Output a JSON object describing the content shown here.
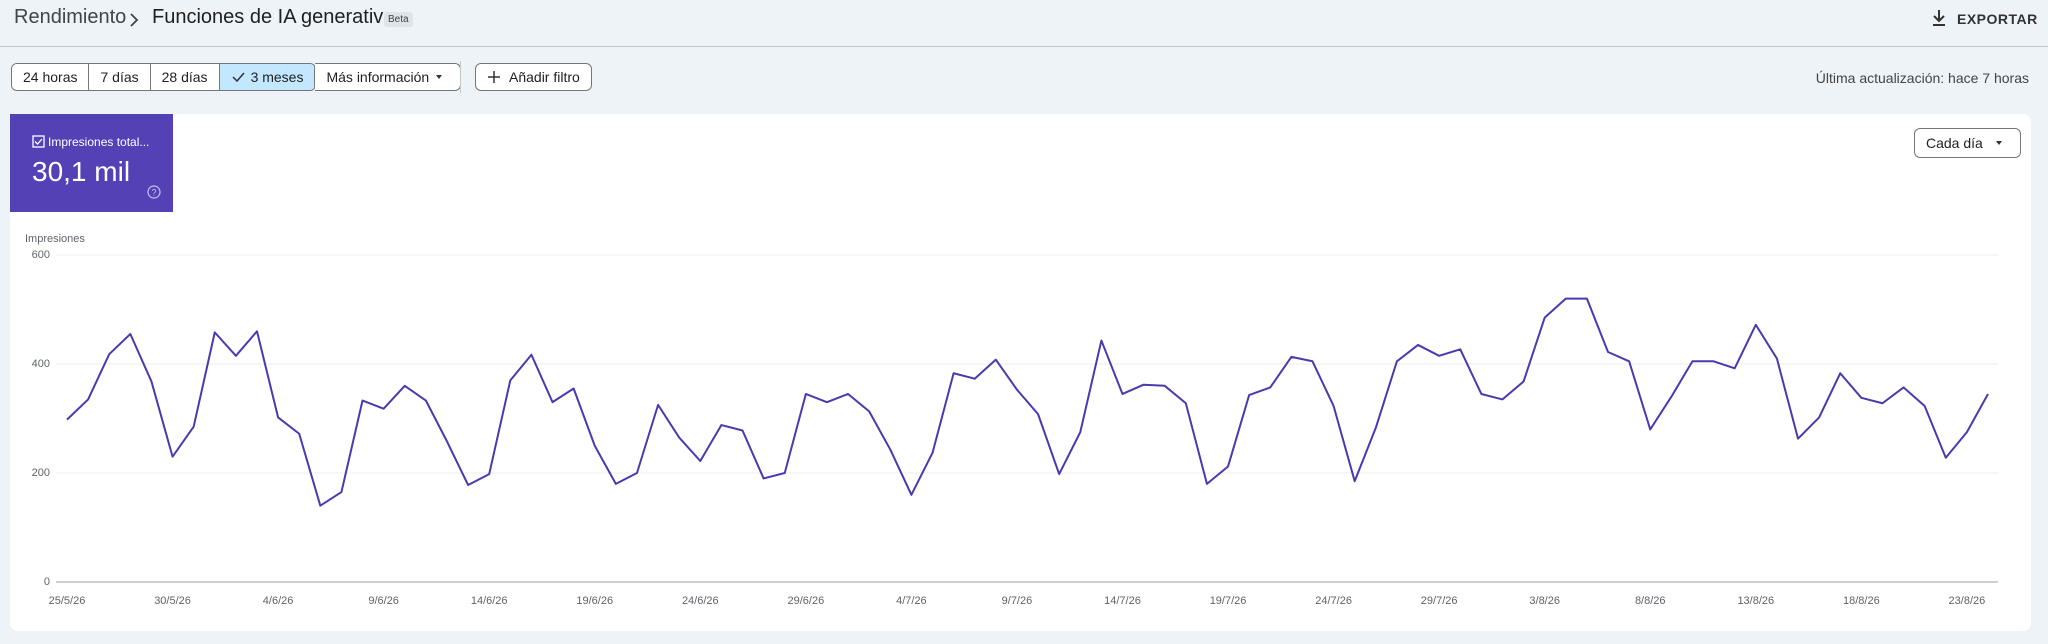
{
  "header": {
    "breadcrumb": "Rendimiento",
    "title": "Funciones de IA generativa",
    "badge": "Beta",
    "export": "EXPORTAR"
  },
  "toolbar": {
    "ranges": [
      "24 horas",
      "7 días",
      "28 días",
      "3 meses"
    ],
    "selected_range": "3 meses",
    "more": "Más información",
    "filter": "Añadir filtro",
    "last_update": "Última actualización: hace 7 horas"
  },
  "metric_card": {
    "label": "Impresiones total...",
    "value": "30,1 mil",
    "color": "#5441b6"
  },
  "granularity": "Cada día",
  "chart_data": {
    "type": "line",
    "y_label": "Impresiones",
    "categories": [
      "25/5/26",
      null,
      null,
      null,
      null,
      "30/5/26",
      null,
      null,
      null,
      null,
      "4/6/26",
      null,
      null,
      null,
      null,
      "9/6/26",
      null,
      null,
      null,
      null,
      "14/6/26",
      null,
      null,
      null,
      null,
      "19/6/26",
      null,
      null,
      null,
      null,
      "24/6/26",
      null,
      null,
      null,
      null,
      "29/6/26",
      null,
      null,
      null,
      null,
      "4/7/26",
      null,
      null,
      null,
      null,
      "9/7/26",
      null,
      null,
      null,
      null,
      "14/7/26",
      null,
      null,
      null,
      null,
      "19/7/26",
      null,
      null,
      null,
      null,
      "24/7/26",
      null,
      null,
      null,
      null,
      "29/7/26",
      null,
      null,
      null,
      null,
      "3/8/26",
      null,
      null,
      null,
      null,
      "8/8/26",
      null,
      null,
      null,
      null,
      "13/8/26",
      null,
      null,
      null,
      null,
      "18/8/26",
      null,
      null,
      null,
      null,
      "23/8/26",
      null
    ],
    "series": [
      {
        "name": "Impresiones",
        "color": "#4a3aad",
        "values": [
          298,
          335,
          418,
          455,
          368,
          230,
          285,
          458,
          415,
          460,
          302,
          272,
          140,
          165,
          333,
          318,
          360,
          333,
          258,
          178,
          198,
          370,
          417,
          330,
          355,
          250,
          180,
          200,
          325,
          265,
          222,
          288,
          278,
          190,
          200,
          345,
          330,
          345,
          313,
          243,
          160,
          237,
          383,
          373,
          408,
          353,
          308,
          198,
          275,
          443,
          345,
          362,
          360,
          328,
          180,
          212,
          343,
          357,
          413,
          405,
          323,
          185,
          283,
          405,
          435,
          415,
          427,
          345,
          335,
          368,
          485,
          520,
          520,
          422,
          405,
          280,
          340,
          405,
          405,
          392,
          472,
          410,
          263,
          302,
          383,
          338,
          328,
          357,
          323,
          228,
          275,
          345
        ]
      }
    ],
    "ylim": [
      0,
      600
    ],
    "yticks": [
      0,
      200,
      400,
      600
    ],
    "grid": true
  }
}
